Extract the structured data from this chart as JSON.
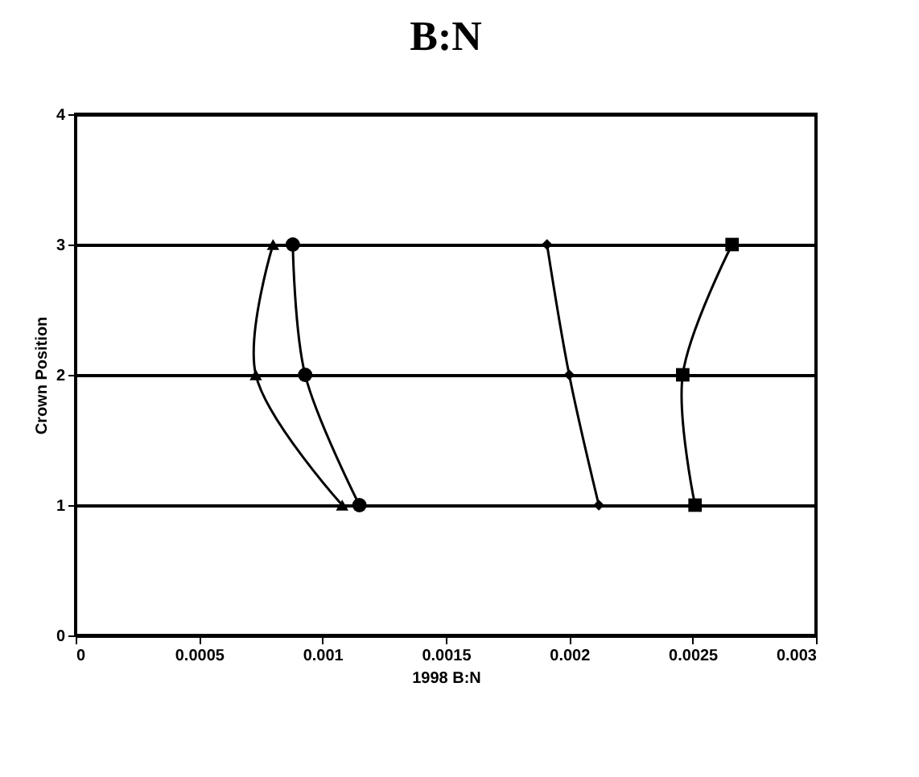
{
  "chart_data": {
    "type": "line",
    "title": "B:N",
    "xlabel": "1998 B:N",
    "ylabel": "Crown Position",
    "xlim": [
      0,
      0.003
    ],
    "xticks": [
      0,
      0.0005,
      0.001,
      0.0015,
      0.002,
      0.0025,
      0.003
    ],
    "ylim": [
      0,
      4
    ],
    "yticks": [
      0,
      1,
      2,
      3,
      4
    ],
    "grid": "y",
    "series": [
      {
        "color": "#000000",
        "marker": "triangle",
        "x": [
          0.0008,
          0.00073,
          0.00108
        ],
        "values": [
          3,
          2,
          1
        ]
      },
      {
        "color": "#000000",
        "marker": "circle",
        "x": [
          0.00088,
          0.00093,
          0.00115
        ],
        "values": [
          3,
          2,
          1
        ]
      },
      {
        "color": "#000000",
        "marker": "diamond",
        "x": [
          0.00191,
          0.002,
          0.00212
        ],
        "values": [
          3,
          2,
          1
        ]
      },
      {
        "color": "#000000",
        "marker": "square",
        "x": [
          0.00266,
          0.00246,
          0.00251
        ],
        "values": [
          3,
          2,
          1
        ]
      }
    ]
  }
}
